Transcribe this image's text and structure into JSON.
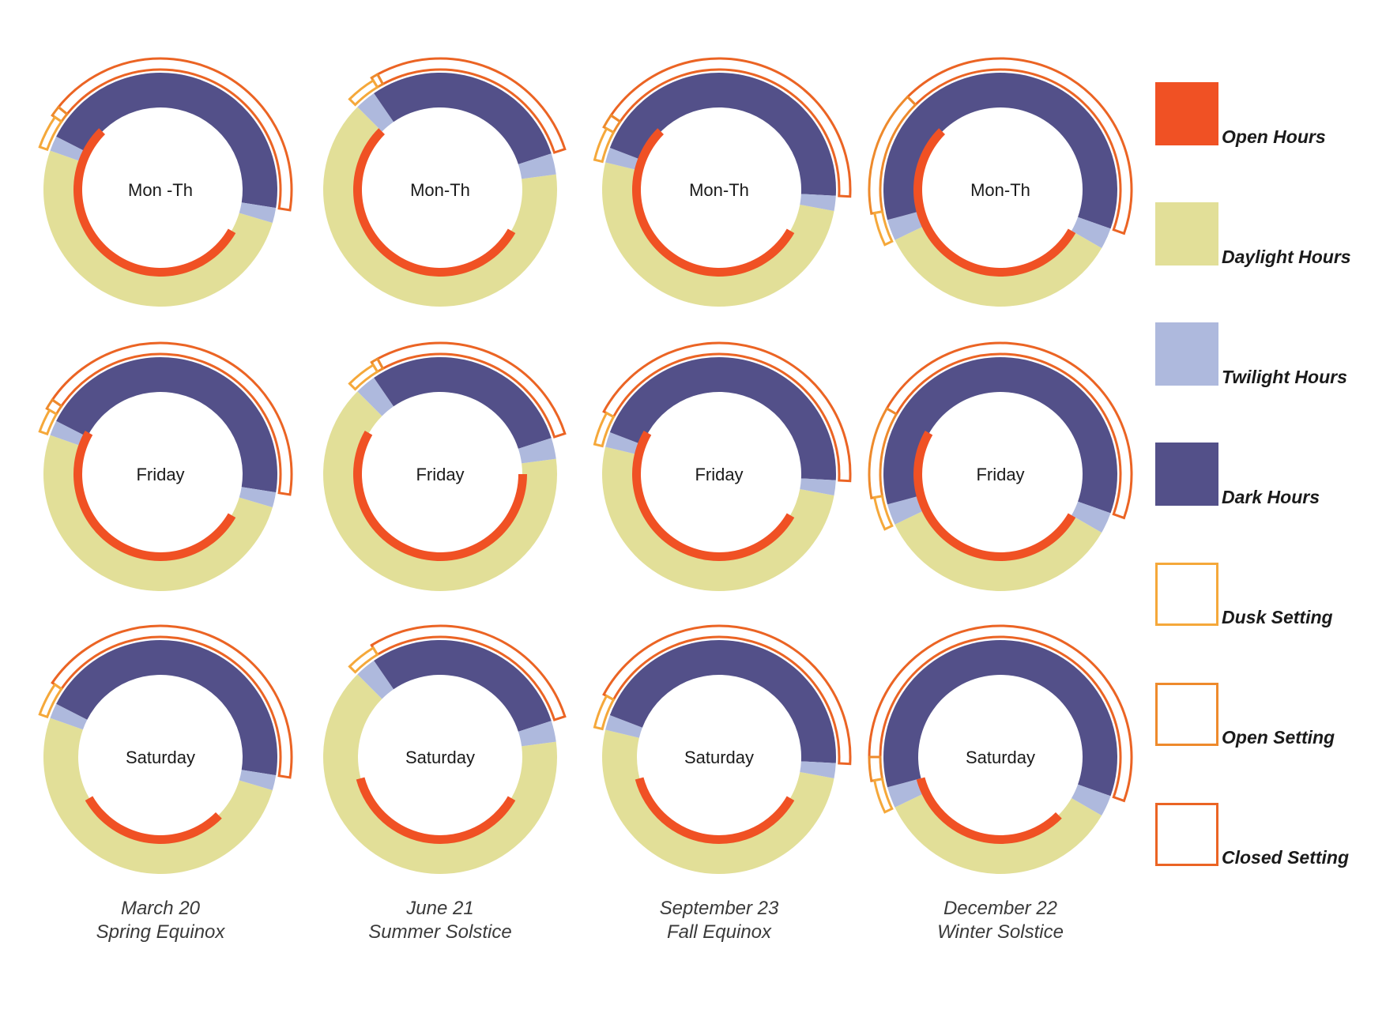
{
  "chart_data": {
    "type": "radial-day-clock",
    "hours_per_revolution": 24,
    "colors": {
      "open_hours": "#f05124",
      "daylight_hours": "#e2df98",
      "twilight_hours": "#aeb9dd",
      "dark_hours": "#535089",
      "dusk_setting": "#f5a83a",
      "open_setting": "#ee8a2c",
      "closed_setting": "#eb6424"
    },
    "legend": [
      {
        "key": "open_hours",
        "label": "Open Hours",
        "style": "fill"
      },
      {
        "key": "daylight_hours",
        "label": "Daylight Hours",
        "style": "fill"
      },
      {
        "key": "twilight_hours",
        "label": "Twilight Hours",
        "style": "fill"
      },
      {
        "key": "dark_hours",
        "label": "Dark Hours",
        "style": "fill"
      },
      {
        "key": "dusk_setting",
        "label": "Dusk Setting",
        "style": "outline"
      },
      {
        "key": "open_setting",
        "label": "Open Setting",
        "style": "outline"
      },
      {
        "key": "closed_setting",
        "label": "Closed Setting",
        "style": "outline"
      }
    ],
    "columns": [
      {
        "date": "March 20",
        "event": "Spring Equinox",
        "sunrise": 7.1,
        "sunset": 19.3,
        "dawn": 6.6,
        "dusk": 19.8,
        "dusk_setting": [
          19.3,
          20.3
        ],
        "open_setting": [
          20.3,
          20.6
        ],
        "closed_setting": [
          20.6,
          6.6
        ]
      },
      {
        "date": "June 21",
        "event": "Summer Solstice",
        "sunrise": 5.5,
        "sunset": 21.0,
        "dawn": 4.8,
        "dusk": 21.7,
        "dusk_setting": [
          21.0,
          21.9
        ],
        "open_setting": [
          21.9,
          22.1
        ],
        "closed_setting": [
          22.1,
          4.8
        ]
      },
      {
        "date": "September 23",
        "event": "Fall Equinox",
        "sunrise": 6.7,
        "sunset": 18.9,
        "dawn": 6.2,
        "dusk": 19.4
      },
      {
        "date": "December 22",
        "event": "Winter Solstice",
        "sunrise": 8.0,
        "sunset": 16.3,
        "dawn": 7.3,
        "dusk": 17.0
      }
    ],
    "rows": [
      {
        "label_by_column": [
          "Mon -Th",
          "Mon-Th",
          "Mon-Th",
          "Mon-Th"
        ],
        "open_hours": [
          [
            8.0,
            21.0
          ],
          [
            8.0,
            21.0
          ],
          [
            8.0,
            21.0
          ],
          [
            8.0,
            21.0
          ]
        ],
        "settings": [
          {
            "dusk_setting": [
              19.3,
              20.3
            ],
            "open_setting": [
              20.3,
              20.6
            ],
            "closed_setting": [
              20.6,
              6.6
            ]
          },
          {
            "dusk_setting": [
              21.0,
              21.9
            ],
            "open_setting": [
              21.9,
              22.1
            ],
            "closed_setting": [
              22.1,
              4.8
            ]
          },
          {
            "dusk_setting": [
              18.9,
              19.9
            ],
            "open_setting": [
              19.9,
              20.3
            ],
            "closed_setting": [
              20.3,
              6.2
            ]
          },
          {
            "dusk_setting": [
              16.3,
              17.3
            ],
            "open_setting": [
              17.3,
              21.0
            ],
            "closed_setting": [
              21.0,
              7.3
            ]
          }
        ]
      },
      {
        "label_by_column": [
          "Friday",
          "Friday",
          "Friday",
          "Friday"
        ],
        "open_hours": [
          [
            8.0,
            20.0
          ],
          [
            6.0,
            20.0
          ],
          [
            8.0,
            20.0
          ],
          [
            8.0,
            20.0
          ]
        ],
        "settings": [
          {
            "dusk_setting": [
              19.3,
              20.0
            ],
            "open_setting": [
              20.0,
              20.3
            ],
            "closed_setting": [
              20.3,
              6.6
            ]
          },
          {
            "dusk_setting": [
              21.0,
              21.9
            ],
            "open_setting": [
              21.9,
              22.1
            ],
            "closed_setting": [
              22.1,
              4.8
            ]
          },
          {
            "dusk_setting": [
              18.9,
              19.9
            ],
            "closed_setting": [
              19.9,
              6.2
            ]
          },
          {
            "dusk_setting": [
              16.3,
              17.3
            ],
            "open_setting": [
              17.3,
              20.0
            ],
            "closed_setting": [
              20.0,
              7.3
            ]
          }
        ]
      },
      {
        "label_by_column": [
          "Saturday",
          "Saturday",
          "Saturday",
          "Saturday"
        ],
        "open_hours": [
          [
            9.0,
            16.0
          ],
          [
            8.0,
            17.0
          ],
          [
            8.0,
            17.0
          ],
          [
            9.0,
            17.0
          ]
        ],
        "settings": [
          {
            "dusk_setting": [
              19.3,
              20.3
            ],
            "closed_setting": [
              20.3,
              6.6
            ]
          },
          {
            "dusk_setting": [
              21.0,
              21.9
            ],
            "closed_setting": [
              21.9,
              4.8
            ]
          },
          {
            "dusk_setting": [
              18.9,
              19.9
            ],
            "closed_setting": [
              19.9,
              6.2
            ]
          },
          {
            "dusk_setting": [
              16.3,
              17.3
            ],
            "open_setting": [
              17.3,
              18.0
            ],
            "closed_setting": [
              18.0,
              7.3
            ]
          }
        ]
      }
    ]
  }
}
